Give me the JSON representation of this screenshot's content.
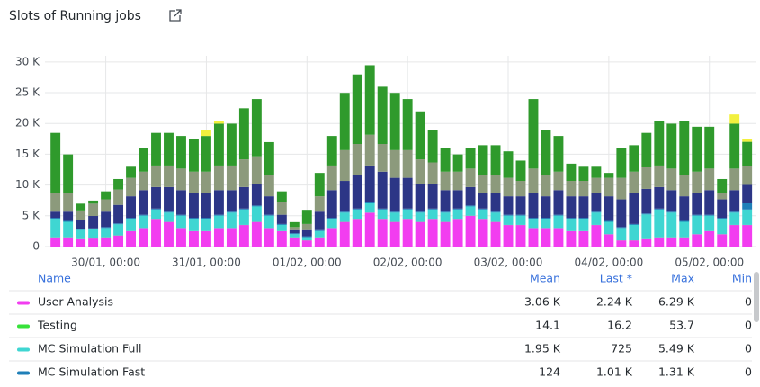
{
  "chart_data": {
    "type": "stacked_bar",
    "title": "Slots of Running jobs",
    "x": [
      -12,
      -9,
      -6,
      -3,
      0,
      3,
      6,
      9,
      12,
      15,
      18,
      21,
      24,
      27,
      30,
      33,
      36,
      39,
      42,
      45,
      48,
      51,
      54,
      57,
      60,
      63,
      66,
      69,
      72,
      75,
      78,
      81,
      84,
      87,
      90,
      93,
      96,
      99,
      102,
      105,
      108,
      111,
      114,
      117,
      120,
      123,
      126,
      129,
      132,
      135,
      138,
      141,
      144,
      147,
      150,
      153
    ],
    "xlim": [
      -14.5,
      155
    ],
    "xticks": [
      {
        "value": 0,
        "label": "30/01, 00:00"
      },
      {
        "value": 24,
        "label": "31/01, 00:00"
      },
      {
        "value": 48,
        "label": "01/02, 00:00"
      },
      {
        "value": 72,
        "label": "02/02, 00:00"
      },
      {
        "value": 96,
        "label": "03/02, 00:00"
      },
      {
        "value": 120,
        "label": "04/02, 00:00"
      },
      {
        "value": 144,
        "label": "05/02, 00:00"
      }
    ],
    "ylim": [
      0,
      31000
    ],
    "yticks": [
      {
        "value": 0,
        "label": "0"
      },
      {
        "value": 5000,
        "label": "5 K"
      },
      {
        "value": 10000,
        "label": "10 K"
      },
      {
        "value": 15000,
        "label": "15 K"
      },
      {
        "value": 20000,
        "label": "20 K"
      },
      {
        "value": 25000,
        "label": "25 K"
      },
      {
        "value": 30000,
        "label": "30 K"
      }
    ],
    "grid": true,
    "series": [
      {
        "name": "User Analysis",
        "color": "#f23df0",
        "values": [
          1500,
          1500,
          1200,
          1300,
          1500,
          1800,
          2500,
          3000,
          4500,
          4000,
          3000,
          2500,
          2500,
          3000,
          3000,
          3500,
          4000,
          3000,
          2500,
          1500,
          1000,
          1500,
          3000,
          4000,
          4500,
          5500,
          4500,
          4000,
          4500,
          4000,
          4500,
          4000,
          4500,
          5000,
          4500,
          4000,
          3500,
          3500,
          3000,
          3000,
          3000,
          2500,
          2500,
          3500,
          2000,
          1000,
          1000,
          1200,
          1500,
          1500,
          1500,
          2000,
          2500,
          2000,
          3500,
          3500
        ]
      },
      {
        "name": "Testing",
        "color": "#37e23a",
        "values": [
          20,
          20,
          20,
          20,
          20,
          20,
          20,
          20,
          20,
          20,
          20,
          20,
          20,
          20,
          20,
          20,
          20,
          20,
          20,
          20,
          20,
          20,
          20,
          20,
          20,
          20,
          20,
          20,
          20,
          20,
          20,
          20,
          20,
          20,
          20,
          20,
          20,
          20,
          20,
          20,
          20,
          20,
          20,
          20,
          20,
          20,
          20,
          20,
          20,
          20,
          20,
          20,
          20,
          20,
          20,
          20
        ]
      },
      {
        "name": "MC Simulation Full",
        "color": "#3fd6d2",
        "values": [
          3000,
          2500,
          1500,
          1500,
          1500,
          1800,
          2000,
          2000,
          1500,
          1500,
          2000,
          2000,
          2000,
          2000,
          2500,
          2500,
          2500,
          2000,
          1000,
          500,
          500,
          1000,
          1500,
          1500,
          1500,
          1500,
          1500,
          1500,
          1500,
          1500,
          1500,
          1500,
          1500,
          1500,
          1500,
          1500,
          1500,
          1500,
          1500,
          1500,
          2000,
          2000,
          2000,
          2000,
          2000,
          2000,
          2500,
          4000,
          4500,
          4000,
          2500,
          3000,
          2500,
          2500,
          2000,
          2500
        ]
      },
      {
        "name": "MC Simulation Fast",
        "color": "#1f7fb8",
        "values": [
          150,
          150,
          150,
          150,
          150,
          150,
          150,
          150,
          150,
          150,
          150,
          150,
          150,
          150,
          150,
          150,
          150,
          150,
          150,
          150,
          150,
          150,
          150,
          150,
          150,
          150,
          150,
          150,
          150,
          150,
          150,
          150,
          150,
          150,
          150,
          150,
          150,
          150,
          150,
          150,
          150,
          150,
          150,
          150,
          150,
          150,
          150,
          150,
          150,
          150,
          150,
          150,
          150,
          150,
          150,
          1000
        ]
      },
      {
        "color": "#2c3686",
        "values": [
          1000,
          1500,
          1500,
          2000,
          2500,
          3000,
          3500,
          4000,
          3500,
          4000,
          4000,
          4000,
          4000,
          4000,
          3500,
          3500,
          3500,
          3000,
          1500,
          500,
          1000,
          3000,
          4500,
          5000,
          5500,
          6000,
          6000,
          5500,
          5000,
          4500,
          4000,
          3500,
          3000,
          3000,
          2500,
          3000,
          3000,
          3000,
          4000,
          3500,
          4000,
          3500,
          3500,
          3000,
          4000,
          4500,
          5000,
          4000,
          3500,
          3500,
          4000,
          3500,
          4000,
          3000,
          3500,
          3000
        ]
      },
      {
        "color": "#8c9a7c",
        "values": [
          3000,
          3000,
          1500,
          2000,
          2000,
          2500,
          3000,
          3000,
          3500,
          3500,
          3500,
          3500,
          3500,
          4000,
          4000,
          4500,
          4500,
          3500,
          2000,
          500,
          1000,
          2500,
          4000,
          5000,
          5000,
          5000,
          4500,
          4500,
          4500,
          4000,
          3500,
          3000,
          3000,
          3000,
          3000,
          3000,
          3000,
          2500,
          4000,
          3500,
          3000,
          2500,
          2500,
          2500,
          3000,
          3500,
          3500,
          3500,
          3500,
          3500,
          3500,
          3500,
          3500,
          1000,
          3500,
          3000
        ]
      },
      {
        "color": "#2f9a2c",
        "values": [
          9800,
          6300,
          1100,
          500,
          1300,
          1700,
          1800,
          3800,
          5300,
          5300,
          5300,
          5300,
          5800,
          6800,
          6800,
          8300,
          9300,
          5300,
          1800,
          800,
          2300,
          3800,
          4800,
          9300,
          11300,
          11300,
          9300,
          9300,
          8300,
          7800,
          5300,
          3800,
          2800,
          3300,
          4800,
          4800,
          4300,
          3300,
          11300,
          7300,
          5800,
          2800,
          2300,
          1800,
          800,
          4800,
          4300,
          5600,
          7300,
          7300,
          8800,
          7300,
          6800,
          2300,
          7300,
          4000
        ]
      },
      {
        "color": "#f2f03e",
        "values": [
          0,
          0,
          0,
          0,
          0,
          0,
          0,
          0,
          0,
          0,
          0,
          0,
          1000,
          500,
          0,
          0,
          0,
          0,
          0,
          0,
          0,
          0,
          0,
          0,
          0,
          0,
          0,
          0,
          0,
          0,
          0,
          0,
          0,
          0,
          0,
          0,
          0,
          0,
          0,
          0,
          0,
          0,
          0,
          0,
          0,
          0,
          0,
          0,
          0,
          0,
          0,
          0,
          0,
          0,
          1500,
          500
        ]
      }
    ],
    "legend": {
      "columns": [
        "Name",
        "Mean",
        "Last *",
        "Max",
        "Min"
      ],
      "stats": [
        [
          "3.06 K",
          "2.24 K",
          "6.29 K",
          "0"
        ],
        [
          "14.1",
          "16.2",
          "53.7",
          "0"
        ],
        [
          "1.95 K",
          "725",
          "5.49 K",
          "0"
        ],
        [
          "124",
          "1.01 K",
          "1.31 K",
          "0"
        ]
      ]
    }
  }
}
